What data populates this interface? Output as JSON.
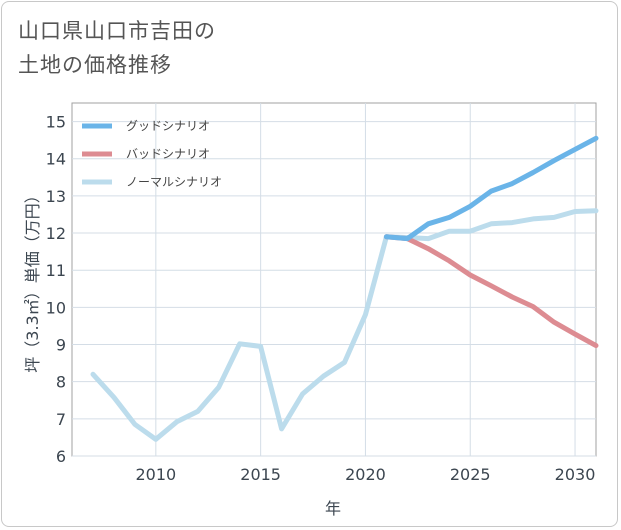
{
  "title_lines": [
    "山口県山口市吉田の",
    "土地の価格推移"
  ],
  "chart_data": {
    "type": "line",
    "title": "山口県山口市吉田の土地の価格推移",
    "xlabel": "年",
    "ylabel": "坪（3.3㎡）単価（万円）",
    "xlim": [
      2006,
      2031
    ],
    "ylim": [
      6,
      15.5
    ],
    "xticks": [
      2010,
      2015,
      2020,
      2025,
      2030
    ],
    "yticks": [
      6,
      7,
      8,
      9,
      10,
      11,
      12,
      13,
      14,
      15
    ],
    "grid": true,
    "legend_position": "top-left",
    "series": [
      {
        "name": "グッドシナリオ",
        "color": "#6ab4e8",
        "x": [
          2021,
          2022,
          2023,
          2024,
          2025,
          2026,
          2027,
          2028,
          2029,
          2030,
          2031
        ],
        "values": [
          11.9,
          11.85,
          12.25,
          12.42,
          12.72,
          13.13,
          13.33,
          13.63,
          13.95,
          14.25,
          14.55
        ]
      },
      {
        "name": "バッドシナリオ",
        "color": "#dd8c92",
        "x": [
          2021,
          2022,
          2023,
          2024,
          2025,
          2026,
          2027,
          2028,
          2029,
          2030,
          2031
        ],
        "values": [
          11.9,
          11.85,
          11.58,
          11.25,
          10.87,
          10.58,
          10.28,
          10.02,
          9.6,
          9.28,
          8.97
        ]
      },
      {
        "name": "ノーマルシナリオ",
        "color": "#bcdcec",
        "x": [
          2007,
          2008,
          2009,
          2010,
          2011,
          2012,
          2013,
          2014,
          2015,
          2016,
          2017,
          2018,
          2019,
          2020,
          2021,
          2022,
          2023,
          2024,
          2025,
          2026,
          2027,
          2028,
          2029,
          2030,
          2031
        ],
        "values": [
          8.2,
          7.58,
          6.85,
          6.45,
          6.92,
          7.2,
          7.85,
          9.02,
          8.95,
          6.73,
          7.67,
          8.15,
          8.52,
          9.8,
          11.9,
          11.88,
          11.85,
          12.05,
          12.05,
          12.25,
          12.28,
          12.38,
          12.42,
          12.58,
          12.6
        ]
      }
    ]
  }
}
